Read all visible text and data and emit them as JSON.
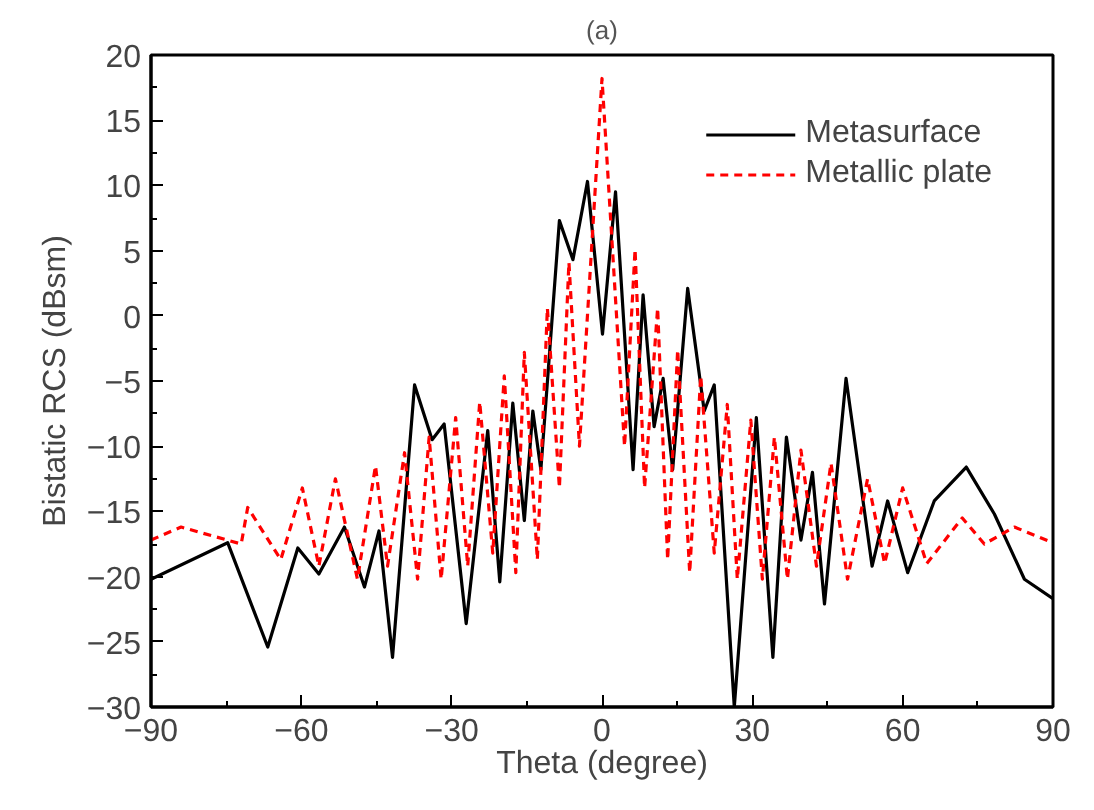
{
  "chart_data": {
    "type": "line",
    "title": "(a)",
    "xlabel": "Theta (degree)",
    "ylabel": "Bistatic RCS (dBsm)",
    "xlim": [
      -90,
      90
    ],
    "xticks": [
      -90,
      -60,
      -30,
      0,
      30,
      60,
      90
    ],
    "ylim": [
      -30,
      20
    ],
    "yticks": [
      -30,
      -25,
      -20,
      -15,
      -10,
      -5,
      0,
      5,
      10,
      15,
      20
    ],
    "grid": false,
    "legend": "top right",
    "marker": "none",
    "series": [
      {
        "name": "Metasurface",
        "color": "#000000",
        "line_style": "solid",
        "x": [
          -90,
          -74.7,
          -66.7,
          -60.7,
          -56.5,
          -51.4,
          -47.4,
          -44.5,
          -41.8,
          -37.4,
          -33.9,
          -31.5,
          -27.1,
          -22.8,
          -20.4,
          -17.8,
          -15.5,
          -13.8,
          -12.2,
          -8.5,
          -5.8,
          -2.9,
          0.1,
          2.7,
          6.2,
          8.2,
          10.4,
          12.2,
          14.1,
          17.1,
          20.4,
          22.4,
          26.4,
          30.8,
          34.1,
          36.8,
          39.7,
          42.0,
          44.4,
          48.7,
          53.9,
          57.0,
          61.0,
          66.3,
          72.7,
          78.3,
          84.3,
          90
        ],
        "values": [
          -20.2,
          -17.4,
          -25.4,
          -17.8,
          -19.8,
          -16.2,
          -20.8,
          -16.5,
          -26.2,
          -5.3,
          -9.5,
          -8.3,
          -23.6,
          -8.8,
          -20.4,
          -6.7,
          -15.7,
          -7.3,
          -11.8,
          7.3,
          4.3,
          10.3,
          -1.4,
          9.5,
          -11.8,
          1.6,
          -8.5,
          -4.8,
          -11.8,
          2.1,
          -7.3,
          -5.3,
          -30,
          -7.8,
          -26.2,
          -9.3,
          -17.2,
          -12.0,
          -22.1,
          -4.8,
          -19.2,
          -14.2,
          -19.7,
          -14.2,
          -11.6,
          -15.2,
          -20.2,
          -21.7
        ]
      },
      {
        "name": "Metallic plate",
        "color": "#ff0000",
        "line_style": "dashed",
        "x": [
          -90,
          -84,
          -72,
          -70.7,
          -64.1,
          -59.8,
          -56.5,
          -53.2,
          -48.8,
          -45.2,
          -42.8,
          -39.4,
          -36.8,
          -34.5,
          -32.1,
          -29.2,
          -26.8,
          -24.4,
          -21.8,
          -19.5,
          -17.2,
          -15.5,
          -12.9,
          -10.9,
          -8.5,
          -6.6,
          -4.5,
          0,
          4.5,
          6.6,
          8.5,
          11.1,
          13.1,
          15.1,
          17.5,
          19.7,
          22.4,
          25.0,
          27.0,
          29.7,
          32.0,
          34.4,
          37.0,
          39.7,
          42.8,
          45.7,
          49.0,
          53.0,
          56.4,
          60.0,
          64.8,
          71.9,
          76.3,
          82.3,
          90
        ],
        "values": [
          -17.2,
          -16.2,
          -17.5,
          -14.7,
          -18.7,
          -13.2,
          -19.2,
          -12.5,
          -20.2,
          -11.5,
          -19.2,
          -10.5,
          -20.2,
          -9.3,
          -20.2,
          -7.8,
          -19.2,
          -6.6,
          -18.2,
          -4.6,
          -19.7,
          -2.8,
          -18.7,
          0.6,
          -13.2,
          4.1,
          -10.0,
          18.2,
          -10.0,
          5.1,
          -13.2,
          0.6,
          -18.7,
          -2.6,
          -19.7,
          -4.6,
          -18.2,
          -6.8,
          -20.2,
          -8.0,
          -20.2,
          -9.3,
          -20.2,
          -10.3,
          -19.2,
          -11.3,
          -20.2,
          -12.5,
          -19.0,
          -13.2,
          -19.0,
          -15.5,
          -17.5,
          -16.2,
          -17.4
        ]
      }
    ]
  }
}
